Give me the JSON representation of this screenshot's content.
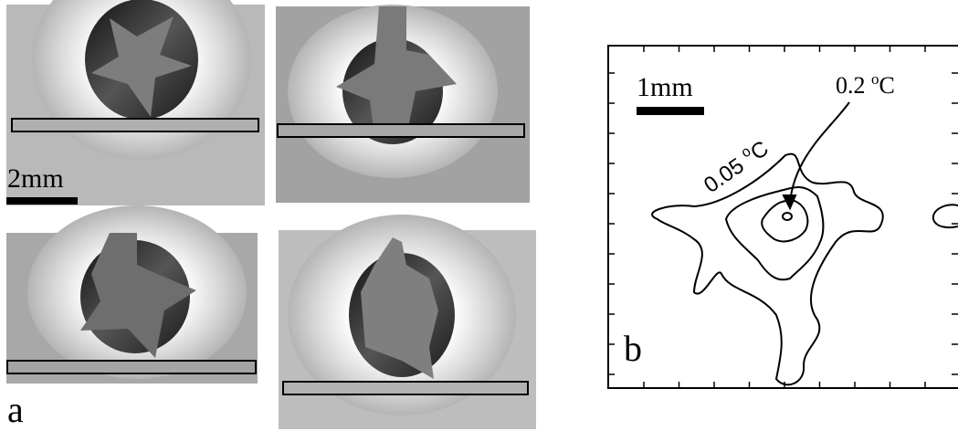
{
  "panel_a": {
    "scale_bar": "2mm",
    "label": "a"
  },
  "panel_b": {
    "scale_bar": "1mm",
    "label": "b",
    "contour_inner": {
      "value": "0.2",
      "unit_super": "o",
      "unit": "C"
    },
    "contour_outer": {
      "value": "0.05",
      "unit_super": "o",
      "unit": "C"
    }
  }
}
